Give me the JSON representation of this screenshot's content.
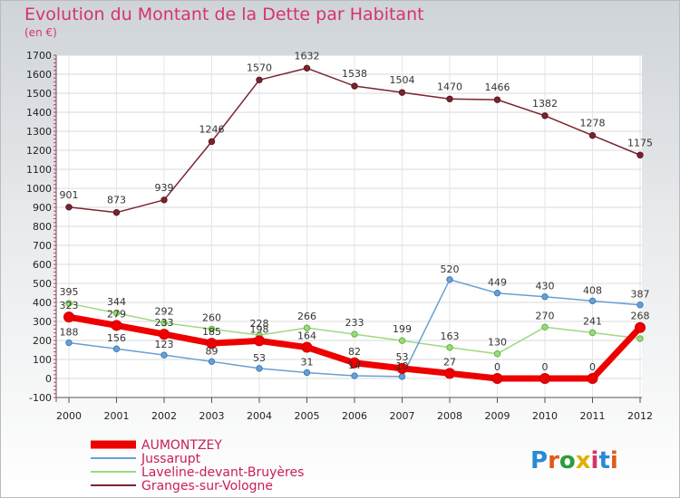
{
  "title": "Evolution du Montant de la Dette par Habitant",
  "subtitle": "(en €)",
  "brand": "Proxiti",
  "chart_data": {
    "type": "line",
    "x": [
      "2000",
      "2001",
      "2002",
      "2003",
      "2004",
      "2005",
      "2006",
      "2007",
      "2008",
      "2009",
      "2010",
      "2011",
      "2012"
    ],
    "ylim": [
      -100,
      1700
    ],
    "yticks": [
      -100,
      0,
      100,
      200,
      300,
      400,
      500,
      600,
      700,
      800,
      900,
      1000,
      1100,
      1200,
      1300,
      1400,
      1500,
      1600,
      1700
    ],
    "grid": true,
    "legend_position": "bottom-left",
    "series": [
      {
        "name": "Granges-sur-Vologne",
        "color": "#7a2430",
        "values": [
          901,
          873,
          939,
          1246,
          1570,
          1632,
          1538,
          1504,
          1470,
          1466,
          1382,
          1278,
          1175
        ],
        "labels": [
          "901",
          "873",
          "939",
          "1246",
          "1570",
          "1632",
          "1538",
          "1504",
          "1470",
          "1466",
          "1382",
          "1278",
          "1175"
        ]
      },
      {
        "name": "Laveline-devant-Bruyères",
        "color": "#9ed880",
        "values": [
          395,
          344,
          292,
          260,
          228,
          266,
          233,
          199,
          163,
          130,
          270,
          241,
          210
        ],
        "labels": [
          "395",
          "344",
          "292",
          "260",
          "228",
          "266",
          "233",
          "199",
          "163",
          "130",
          "270",
          "241",
          ""
        ]
      },
      {
        "name": "Jussarupt",
        "color": "#6a9fd0",
        "values": [
          188,
          156,
          123,
          89,
          53,
          31,
          14,
          10,
          520,
          449,
          430,
          408,
          387
        ],
        "labels": [
          "188",
          "156",
          "123",
          "89",
          "53",
          "31",
          "14",
          "10",
          "520",
          "449",
          "430",
          "408",
          "387"
        ]
      },
      {
        "name": "AUMONTZEY",
        "color": "#ee0000",
        "values": [
          323,
          279,
          233,
          185,
          198,
          164,
          82,
          53,
          27,
          0,
          0,
          0,
          268
        ],
        "labels": [
          "323",
          "279",
          "233",
          "185",
          "198",
          "164",
          "82",
          "53",
          "27",
          "0",
          "0",
          "0",
          "268"
        ]
      }
    ]
  }
}
